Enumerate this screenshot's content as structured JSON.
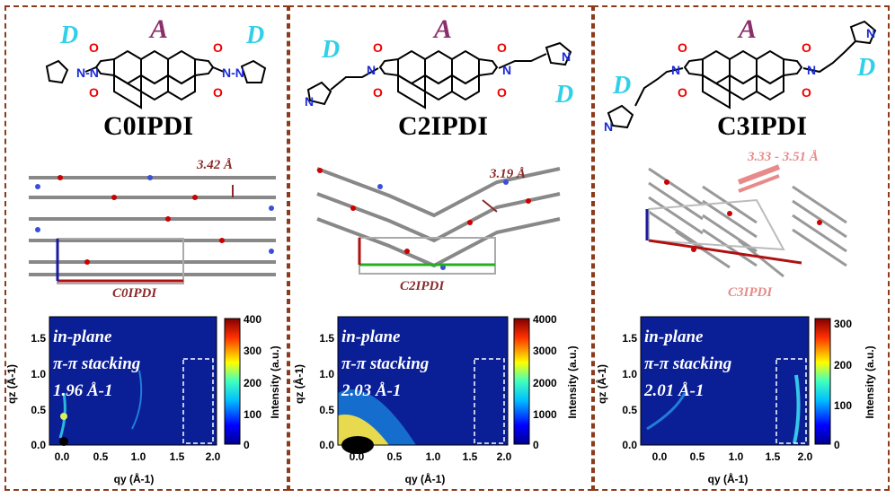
{
  "common": {
    "acceptor": "A",
    "donor": "D"
  },
  "panels": [
    {
      "id": "c0",
      "title": "C0IPDI",
      "stacking_distance": "3.42 Å",
      "cell_label": "C0IPDI",
      "giwaxs": {
        "overlay1": "in-plane",
        "overlay2": "π-π stacking",
        "overlay3": "1.96 Å-1"
      },
      "colorbar_ticks": [
        "400",
        "300",
        "200",
        "100",
        "0"
      ]
    },
    {
      "id": "c2",
      "title": "C2IPDI",
      "stacking_distance": "3.19 Å",
      "cell_label": "C2IPDI",
      "giwaxs": {
        "overlay1": "in-plane",
        "overlay2": "π-π stacking",
        "overlay3": "2.03 Å-1"
      },
      "colorbar_ticks": [
        "4000",
        "3000",
        "2000",
        "1000",
        "0"
      ]
    },
    {
      "id": "c3",
      "title": "C3IPDI",
      "stacking_distance": "3.33 - 3.51 Å",
      "cell_label": "C3IPDI",
      "giwaxs": {
        "overlay1": "in-plane",
        "overlay2": "π-π stacking",
        "overlay3": "2.01 Å-1"
      },
      "colorbar_ticks": [
        "300",
        "200",
        "100",
        "0"
      ]
    }
  ],
  "axes": {
    "y_ticks": [
      "1.5",
      "1.0",
      "0.5",
      "0.0"
    ],
    "x_ticks": [
      "0.0",
      "0.5",
      "1.0",
      "1.5",
      "2.0"
    ],
    "ylabel": "qz (Å-1)",
    "xlabel": "qy (Å-1)",
    "colorbar_label": "Intensity (a.u.)"
  },
  "colors": {
    "frame": "#8b3a1a",
    "acceptor": "#8b2f6b",
    "donor": "#2fd0e8",
    "dim": "#8b2a2a",
    "pink": "#e88a8a"
  }
}
